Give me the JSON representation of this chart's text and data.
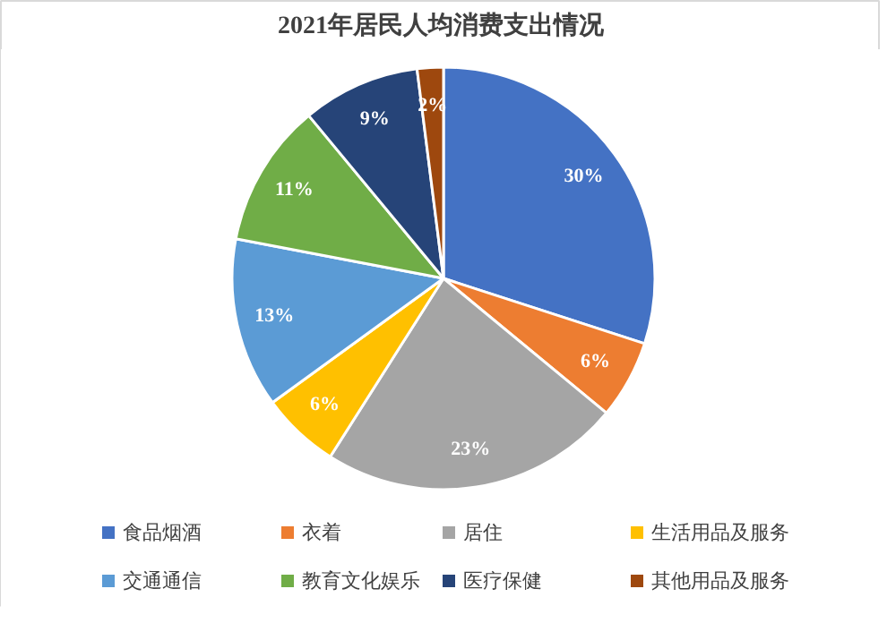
{
  "chart_data": {
    "type": "pie",
    "title": "2021年居民人均消费支出情况",
    "categories": [
      "食品烟酒",
      "衣着",
      "居住",
      "生活用品及服务",
      "交通通信",
      "教育文化娱乐",
      "医疗保健",
      "其他用品及服务"
    ],
    "values": [
      30,
      6,
      23,
      6,
      13,
      11,
      9,
      2
    ],
    "colors": [
      "#4472c4",
      "#ed7d31",
      "#a5a5a5",
      "#ffc000",
      "#5b9bd5",
      "#70ad47",
      "#264478",
      "#9e480e"
    ],
    "value_labels": [
      "30%",
      "6%",
      "23%",
      "6%",
      "13%",
      "11%",
      "9%",
      "2%"
    ],
    "legend": "bottom"
  }
}
